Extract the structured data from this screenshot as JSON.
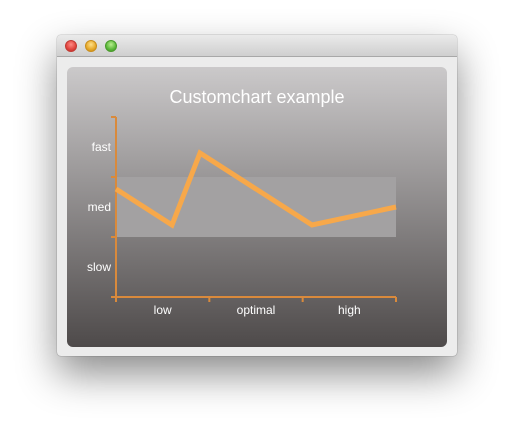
{
  "window": {
    "title": ""
  },
  "chart_data": {
    "type": "line",
    "title": "Customchart example",
    "categories": [
      "low",
      "optimal",
      "high"
    ],
    "y_categories": [
      "slow",
      "med",
      "fast"
    ],
    "xlim": [
      0,
      3
    ],
    "ylim": [
      0,
      3
    ],
    "band": {
      "x": [
        0,
        3
      ],
      "y": [
        1,
        2
      ],
      "color": "#a3a1a2"
    },
    "series": [
      {
        "values": [
          {
            "x": 0.0,
            "y": 1.8
          },
          {
            "x": 0.6,
            "y": 1.2
          },
          {
            "x": 0.9,
            "y": 2.4
          },
          {
            "x": 2.1,
            "y": 1.2
          },
          {
            "x": 3.0,
            "y": 1.5
          }
        ],
        "color": "#f7a84a"
      }
    ],
    "axis_color": "#d98a3c",
    "grid": false,
    "legend": "none"
  }
}
